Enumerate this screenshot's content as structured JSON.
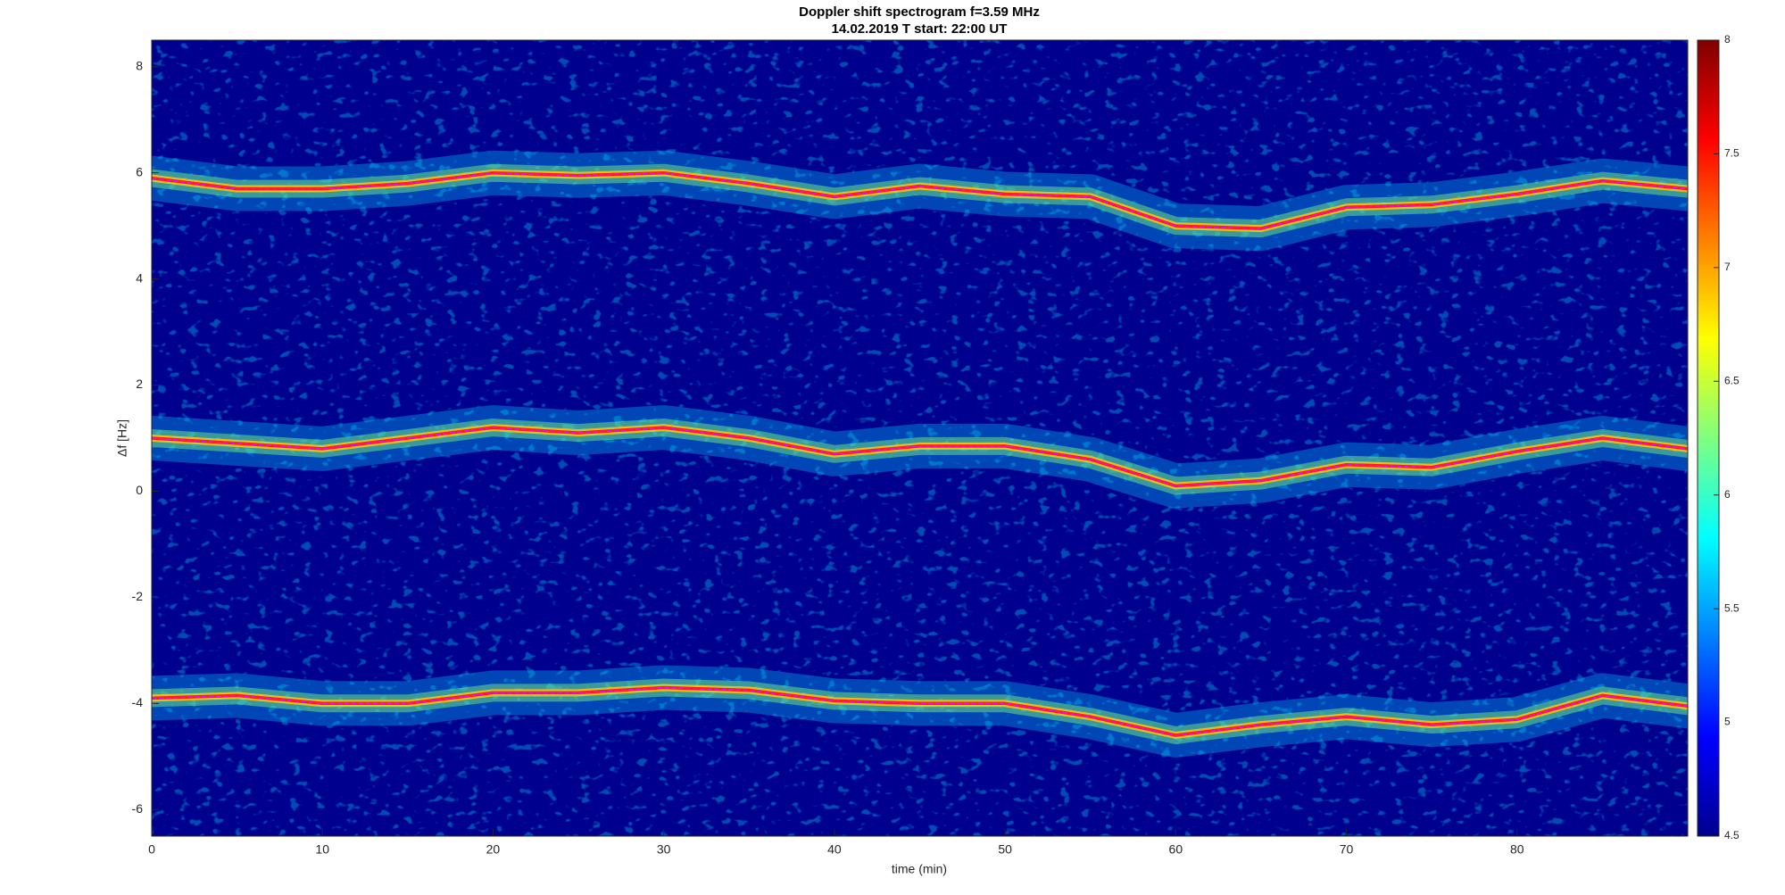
{
  "chart_data": {
    "type": "spectrogram",
    "title": "Doppler shift spectrogram f=3.59 MHz",
    "subtitle": "14.02.2019    T start: 22:00 UT",
    "x_label": "time (min)",
    "y_label": "Δf [Hz]",
    "x": [
      0,
      5,
      10,
      15,
      20,
      25,
      30,
      35,
      40,
      45,
      50,
      55,
      60,
      65,
      70,
      75,
      80,
      85,
      90
    ],
    "series": [
      {
        "color": "#ff00ff",
        "values": [
          5.9,
          5.7,
          5.7,
          5.8,
          6.0,
          5.95,
          6.0,
          5.8,
          5.55,
          5.75,
          5.6,
          5.55,
          5.0,
          4.95,
          5.35,
          5.4,
          5.6,
          5.85,
          5.7
        ]
      },
      {
        "color": "#ff00ff",
        "values": [
          1.0,
          0.9,
          0.8,
          1.0,
          1.2,
          1.1,
          1.2,
          1.0,
          0.7,
          0.85,
          0.85,
          0.6,
          0.1,
          0.2,
          0.5,
          0.45,
          0.75,
          1.0,
          0.8
        ]
      },
      {
        "color": "#ff00ff",
        "values": [
          -3.9,
          -3.85,
          -4.0,
          -4.0,
          -3.8,
          -3.8,
          -3.7,
          -3.75,
          -3.95,
          -4.0,
          -4.0,
          -4.25,
          -4.6,
          -4.4,
          -4.25,
          -4.4,
          -4.3,
          -3.85,
          -4.05
        ]
      }
    ],
    "xlim": [
      0,
      90
    ],
    "xticks": [
      0,
      10,
      20,
      30,
      40,
      50,
      60,
      70,
      80
    ],
    "ylim": [
      -6.5,
      8.5
    ],
    "yticks": [
      -6,
      -4,
      -2,
      0,
      2,
      4,
      6,
      8
    ],
    "colormap": "jet",
    "clim": [
      4.5,
      8
    ],
    "cticks": [
      4.5,
      5,
      5.5,
      6,
      6.5,
      7,
      7.5,
      8
    ]
  }
}
